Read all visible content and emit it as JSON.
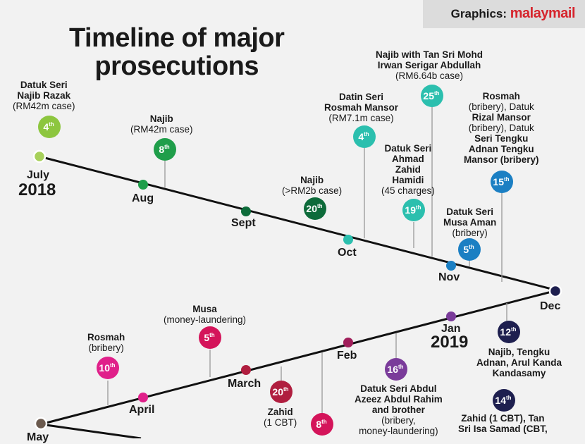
{
  "header": {
    "credit_prefix": "Graphics:",
    "credit_brand": "malaymail"
  },
  "title": {
    "line1": "Timeline of major",
    "line2": "prosecutions"
  },
  "months": {
    "july": "July",
    "aug": "Aug",
    "sept": "Sept",
    "oct": "Oct",
    "nov": "Nov",
    "dec": "Dec",
    "jan": "Jan",
    "feb": "Feb",
    "march": "March",
    "april": "April",
    "may": "May"
  },
  "years": {
    "y2018": "2018",
    "y2019": "2019"
  },
  "events": [
    {
      "day": "4",
      "suffix": "th",
      "color": "#8dc63f",
      "lines": [
        "Datuk Seri",
        "Najib Razak",
        "(RM42m case)"
      ]
    },
    {
      "day": "8",
      "suffix": "th",
      "color": "#1f9e4a",
      "lines": [
        "Najib",
        "(RM42m case)"
      ]
    },
    {
      "day": "20",
      "suffix": "th",
      "color": "#0d6b3a",
      "lines": [
        "Najib",
        "(>RM2b case)"
      ]
    },
    {
      "day": "4",
      "suffix": "th",
      "color": "#2bbfae",
      "lines": [
        "Datin Seri",
        "Rosmah Mansor",
        "(RM7.1m case)"
      ]
    },
    {
      "day": "25",
      "suffix": "th",
      "color": "#2bbfae",
      "lines": [
        "Najib with Tan Sri Mohd",
        "Irwan Serigar Abdullah",
        "(RM6.64b case)"
      ]
    },
    {
      "day": "19",
      "suffix": "th",
      "color": "#2bbfae",
      "lines": [
        "Datuk Seri",
        "Ahmad",
        "Zahid",
        "Hamidi",
        "(45 charges)"
      ]
    },
    {
      "day": "5",
      "suffix": "th",
      "color": "#1b7fc3",
      "lines": [
        "Datuk Seri",
        "Musa Aman",
        "(bribery)"
      ]
    },
    {
      "day": "15",
      "suffix": "th",
      "color": "#1b7fc3",
      "lines": [
        "Rosmah",
        "(bribery), Datuk",
        "Rizal Mansor",
        "(bribery), Datuk",
        "Seri Tengku",
        "Adnan Tengku",
        "Mansor (bribery)"
      ]
    },
    {
      "day": "12",
      "suffix": "th",
      "color": "#1e1f4f",
      "lines": [
        "Najib, Tengku",
        "Adnan, Arul Kanda",
        "Kandasamy"
      ]
    },
    {
      "day": "14",
      "suffix": "th",
      "color": "#1e1f4f",
      "lines": [
        "Zahid (1 CBT), Tan",
        "Sri Isa Samad (CBT,"
      ]
    },
    {
      "day": "16",
      "suffix": "th",
      "color": "#7a3b9a",
      "lines": [
        "Datuk Seri Abdul",
        "Azeez Abdul Rahim",
        "and brother",
        "(bribery,",
        "money-laundering)"
      ]
    },
    {
      "day": "20",
      "suffix": "th",
      "color": "#b01e3f",
      "lines": [
        "Zahid",
        "(1 CBT)"
      ]
    },
    {
      "day": "8",
      "suffix": "th",
      "color": "#d4145a",
      "lines": []
    },
    {
      "day": "5",
      "suffix": "th",
      "color": "#d4145a",
      "lines": [
        "Musa",
        "(money-laundering)"
      ]
    },
    {
      "day": "10",
      "suffix": "th",
      "color": "#e0208a",
      "lines": [
        "Rosmah",
        "(bribery)"
      ]
    }
  ],
  "colors": {
    "line": "#111111",
    "background": "#f2f2f2",
    "jul": "#a7d05a",
    "aug": "#1f9e4a",
    "sep": "#0d6b3a",
    "oct": "#2bbfae",
    "nov": "#1b7fc3",
    "dec": "#1e1f4f",
    "jan": "#7a3b9a",
    "feb": "#a01e5a",
    "mar": "#b01e3f",
    "apr": "#e0208a",
    "may": "#6b5a4e"
  }
}
